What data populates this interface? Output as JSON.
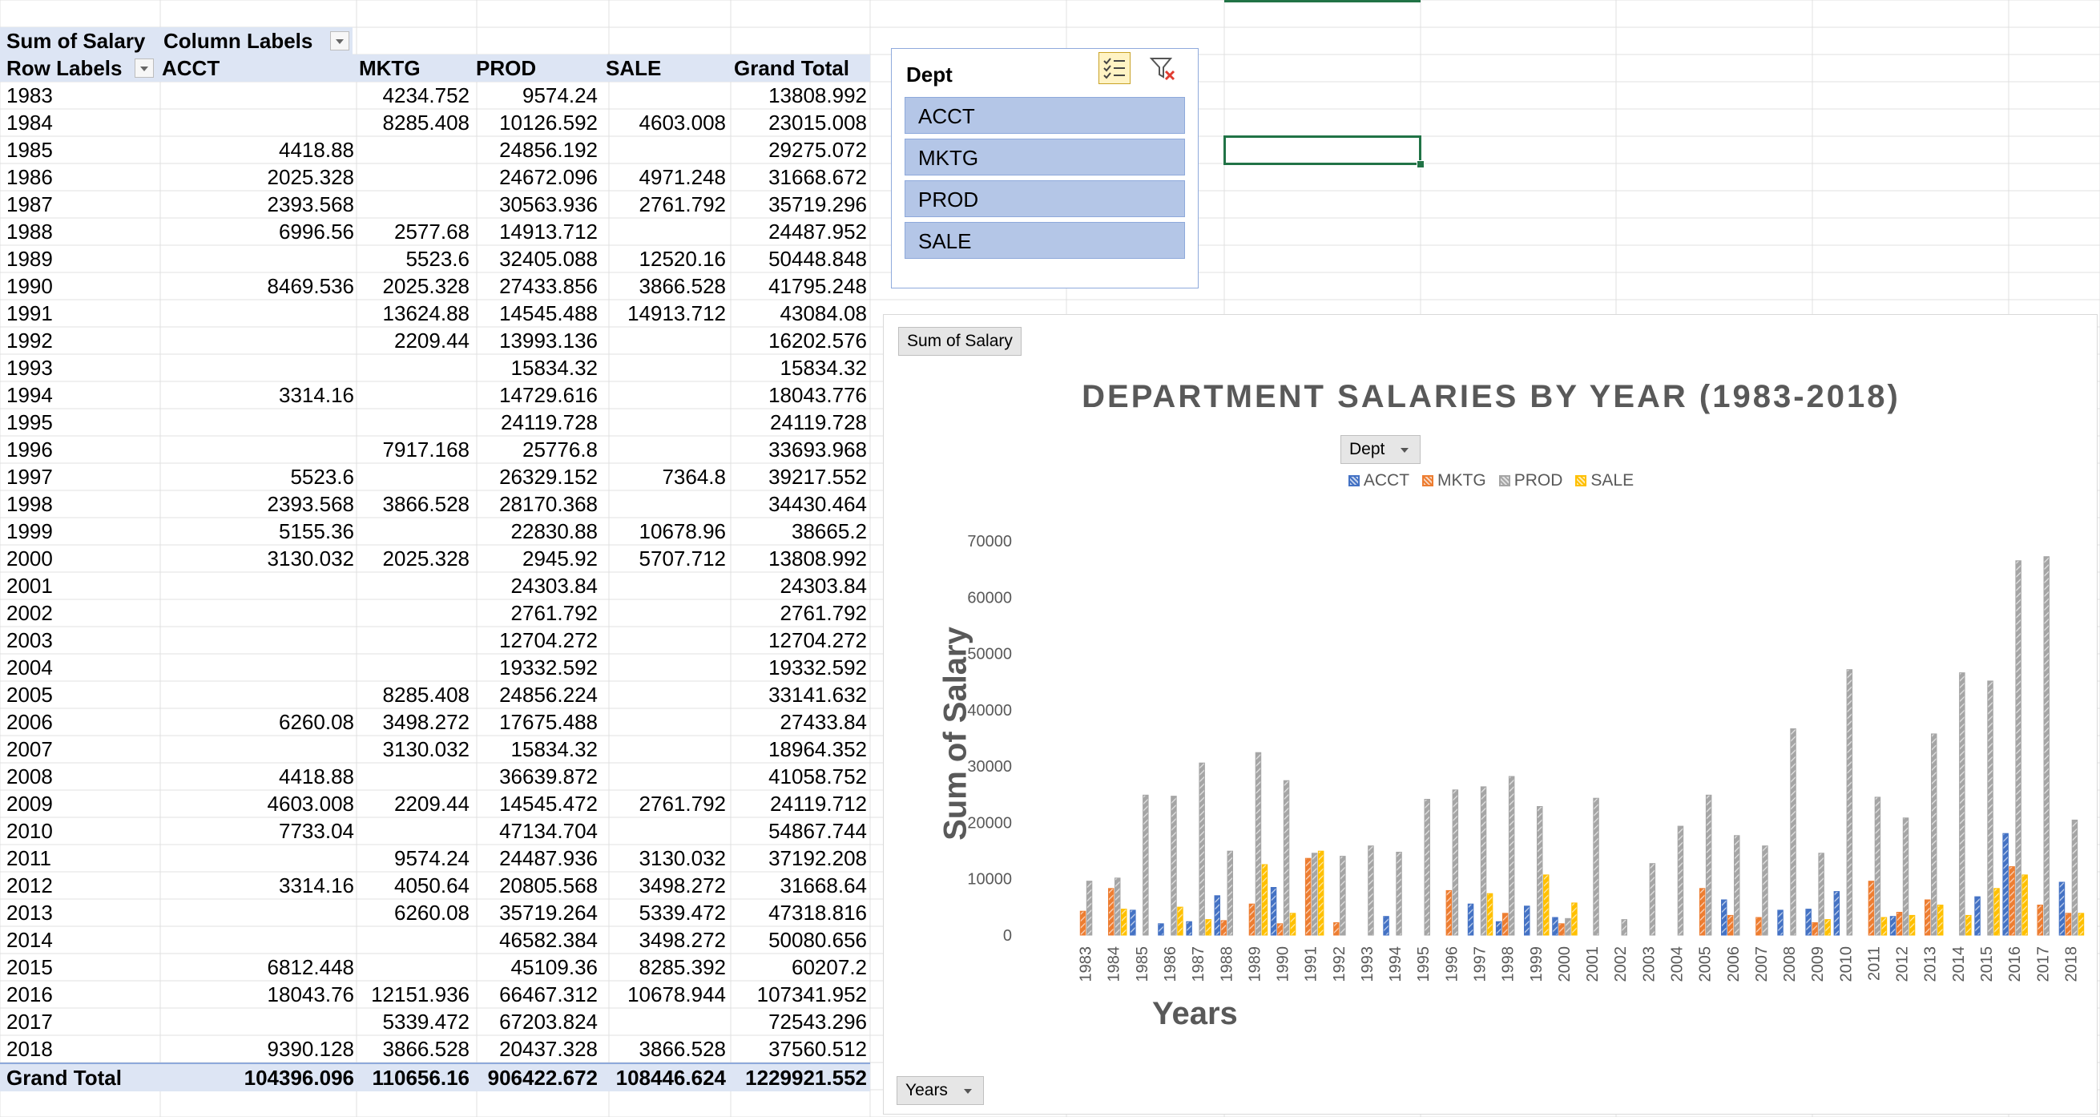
{
  "pivot": {
    "corner_label": "Sum of Salary",
    "column_labels": "Column Labels",
    "row_labels": "Row Labels",
    "columns": [
      "ACCT",
      "MKTG",
      "PROD",
      "SALE",
      "Grand Total"
    ],
    "rows": [
      {
        "year": "1983",
        "acct": "",
        "mktg": "4234.752",
        "prod": "9574.24",
        "sale": "",
        "total": "13808.992"
      },
      {
        "year": "1984",
        "acct": "",
        "mktg": "8285.408",
        "prod": "10126.592",
        "sale": "4603.008",
        "total": "23015.008"
      },
      {
        "year": "1985",
        "acct": "4418.88",
        "mktg": "",
        "prod": "24856.192",
        "sale": "",
        "total": "29275.072"
      },
      {
        "year": "1986",
        "acct": "2025.328",
        "mktg": "",
        "prod": "24672.096",
        "sale": "4971.248",
        "total": "31668.672"
      },
      {
        "year": "1987",
        "acct": "2393.568",
        "mktg": "",
        "prod": "30563.936",
        "sale": "2761.792",
        "total": "35719.296"
      },
      {
        "year": "1988",
        "acct": "6996.56",
        "mktg": "2577.68",
        "prod": "14913.712",
        "sale": "",
        "total": "24487.952"
      },
      {
        "year": "1989",
        "acct": "",
        "mktg": "5523.6",
        "prod": "32405.088",
        "sale": "12520.16",
        "total": "50448.848"
      },
      {
        "year": "1990",
        "acct": "8469.536",
        "mktg": "2025.328",
        "prod": "27433.856",
        "sale": "3866.528",
        "total": "41795.248"
      },
      {
        "year": "1991",
        "acct": "",
        "mktg": "13624.88",
        "prod": "14545.488",
        "sale": "14913.712",
        "total": "43084.08"
      },
      {
        "year": "1992",
        "acct": "",
        "mktg": "2209.44",
        "prod": "13993.136",
        "sale": "",
        "total": "16202.576"
      },
      {
        "year": "1993",
        "acct": "",
        "mktg": "",
        "prod": "15834.32",
        "sale": "",
        "total": "15834.32"
      },
      {
        "year": "1994",
        "acct": "3314.16",
        "mktg": "",
        "prod": "14729.616",
        "sale": "",
        "total": "18043.776"
      },
      {
        "year": "1995",
        "acct": "",
        "mktg": "",
        "prod": "24119.728",
        "sale": "",
        "total": "24119.728"
      },
      {
        "year": "1996",
        "acct": "",
        "mktg": "7917.168",
        "prod": "25776.8",
        "sale": "",
        "total": "33693.968"
      },
      {
        "year": "1997",
        "acct": "5523.6",
        "mktg": "",
        "prod": "26329.152",
        "sale": "7364.8",
        "total": "39217.552"
      },
      {
        "year": "1998",
        "acct": "2393.568",
        "mktg": "3866.528",
        "prod": "28170.368",
        "sale": "",
        "total": "34430.464"
      },
      {
        "year": "1999",
        "acct": "5155.36",
        "mktg": "",
        "prod": "22830.88",
        "sale": "10678.96",
        "total": "38665.2"
      },
      {
        "year": "2000",
        "acct": "3130.032",
        "mktg": "2025.328",
        "prod": "2945.92",
        "sale": "5707.712",
        "total": "13808.992"
      },
      {
        "year": "2001",
        "acct": "",
        "mktg": "",
        "prod": "24303.84",
        "sale": "",
        "total": "24303.84"
      },
      {
        "year": "2002",
        "acct": "",
        "mktg": "",
        "prod": "2761.792",
        "sale": "",
        "total": "2761.792"
      },
      {
        "year": "2003",
        "acct": "",
        "mktg": "",
        "prod": "12704.272",
        "sale": "",
        "total": "12704.272"
      },
      {
        "year": "2004",
        "acct": "",
        "mktg": "",
        "prod": "19332.592",
        "sale": "",
        "total": "19332.592"
      },
      {
        "year": "2005",
        "acct": "",
        "mktg": "8285.408",
        "prod": "24856.224",
        "sale": "",
        "total": "33141.632"
      },
      {
        "year": "2006",
        "acct": "6260.08",
        "mktg": "3498.272",
        "prod": "17675.488",
        "sale": "",
        "total": "27433.84"
      },
      {
        "year": "2007",
        "acct": "",
        "mktg": "3130.032",
        "prod": "15834.32",
        "sale": "",
        "total": "18964.352"
      },
      {
        "year": "2008",
        "acct": "4418.88",
        "mktg": "",
        "prod": "36639.872",
        "sale": "",
        "total": "41058.752"
      },
      {
        "year": "2009",
        "acct": "4603.008",
        "mktg": "2209.44",
        "prod": "14545.472",
        "sale": "2761.792",
        "total": "24119.712"
      },
      {
        "year": "2010",
        "acct": "7733.04",
        "mktg": "",
        "prod": "47134.704",
        "sale": "",
        "total": "54867.744"
      },
      {
        "year": "2011",
        "acct": "",
        "mktg": "9574.24",
        "prod": "24487.936",
        "sale": "3130.032",
        "total": "37192.208"
      },
      {
        "year": "2012",
        "acct": "3314.16",
        "mktg": "4050.64",
        "prod": "20805.568",
        "sale": "3498.272",
        "total": "31668.64"
      },
      {
        "year": "2013",
        "acct": "",
        "mktg": "6260.08",
        "prod": "35719.264",
        "sale": "5339.472",
        "total": "47318.816"
      },
      {
        "year": "2014",
        "acct": "",
        "mktg": "",
        "prod": "46582.384",
        "sale": "3498.272",
        "total": "50080.656"
      },
      {
        "year": "2015",
        "acct": "6812.448",
        "mktg": "",
        "prod": "45109.36",
        "sale": "8285.392",
        "total": "60207.2"
      },
      {
        "year": "2016",
        "acct": "18043.76",
        "mktg": "12151.936",
        "prod": "66467.312",
        "sale": "10678.944",
        "total": "107341.952"
      },
      {
        "year": "2017",
        "acct": "",
        "mktg": "5339.472",
        "prod": "67203.824",
        "sale": "",
        "total": "72543.296"
      },
      {
        "year": "2018",
        "acct": "9390.128",
        "mktg": "3866.528",
        "prod": "20437.328",
        "sale": "3866.528",
        "total": "37560.512"
      }
    ],
    "grand_total": {
      "label": "Grand Total",
      "acct": "104396.096",
      "mktg": "110656.16",
      "prod": "906422.672",
      "sale": "108446.624",
      "total": "1229921.552"
    }
  },
  "slicer": {
    "title": "Dept",
    "items": [
      "ACCT",
      "MKTG",
      "PROD",
      "SALE"
    ],
    "multiselect_icon": "multi-select-icon",
    "clear_filter_icon": "clear-filter-icon"
  },
  "chart": {
    "value_field_button": "Sum of Salary",
    "legend_field_button": "Dept",
    "axis_field_button": "Years"
  },
  "chart_data": {
    "type": "bar",
    "title": "DEPARTMENT SALARIES BY YEAR (1983-2018)",
    "xlabel": "Years",
    "ylabel": "Sum of Salary",
    "ylim": [
      0,
      70000
    ],
    "yticks": [
      0,
      10000,
      20000,
      30000,
      40000,
      50000,
      60000,
      70000
    ],
    "legend_position": "top",
    "grid": false,
    "categories": [
      "1983",
      "1984",
      "1985",
      "1986",
      "1987",
      "1988",
      "1989",
      "1990",
      "1991",
      "1992",
      "1993",
      "1994",
      "1995",
      "1996",
      "1997",
      "1998",
      "1999",
      "2000",
      "2001",
      "2002",
      "2003",
      "2004",
      "2005",
      "2006",
      "2007",
      "2008",
      "2009",
      "2010",
      "2011",
      "2012",
      "2013",
      "2014",
      "2015",
      "2016",
      "2017",
      "2018"
    ],
    "series": [
      {
        "name": "ACCT",
        "color": "#4472c4",
        "values": [
          null,
          null,
          4418.88,
          2025.328,
          2393.568,
          6996.56,
          null,
          8469.536,
          null,
          null,
          null,
          3314.16,
          null,
          null,
          5523.6,
          2393.568,
          5155.36,
          3130.032,
          null,
          null,
          null,
          null,
          null,
          6260.08,
          null,
          4418.88,
          4603.008,
          7733.04,
          null,
          3314.16,
          null,
          null,
          6812.448,
          18043.76,
          null,
          9390.128
        ]
      },
      {
        "name": "MKTG",
        "color": "#ed7d31",
        "values": [
          4234.752,
          8285.408,
          null,
          null,
          null,
          2577.68,
          5523.6,
          2025.328,
          13624.88,
          2209.44,
          null,
          null,
          null,
          7917.168,
          null,
          3866.528,
          null,
          2025.328,
          null,
          null,
          null,
          null,
          8285.408,
          3498.272,
          3130.032,
          null,
          2209.44,
          null,
          9574.24,
          4050.64,
          6260.08,
          null,
          null,
          12151.936,
          5339.472,
          3866.528
        ]
      },
      {
        "name": "PROD",
        "color": "#a5a5a5",
        "values": [
          9574.24,
          10126.592,
          24856.192,
          24672.096,
          30563.936,
          14913.712,
          32405.088,
          27433.856,
          14545.488,
          13993.136,
          15834.32,
          14729.616,
          24119.728,
          25776.8,
          26329.152,
          28170.368,
          22830.88,
          2945.92,
          24303.84,
          2761.792,
          12704.272,
          19332.592,
          24856.224,
          17675.488,
          15834.32,
          36639.872,
          14545.472,
          47134.704,
          24487.936,
          20805.568,
          35719.264,
          46582.384,
          45109.36,
          66467.312,
          67203.824,
          20437.328
        ]
      },
      {
        "name": "SALE",
        "color": "#ffc000",
        "values": [
          null,
          4603.008,
          null,
          4971.248,
          2761.792,
          null,
          12520.16,
          3866.528,
          14913.712,
          null,
          null,
          null,
          null,
          null,
          7364.8,
          null,
          10678.96,
          5707.712,
          null,
          null,
          null,
          null,
          null,
          null,
          null,
          null,
          2761.792,
          null,
          3130.032,
          3498.272,
          5339.472,
          3498.272,
          8285.392,
          10678.944,
          null,
          3866.528
        ]
      }
    ]
  }
}
